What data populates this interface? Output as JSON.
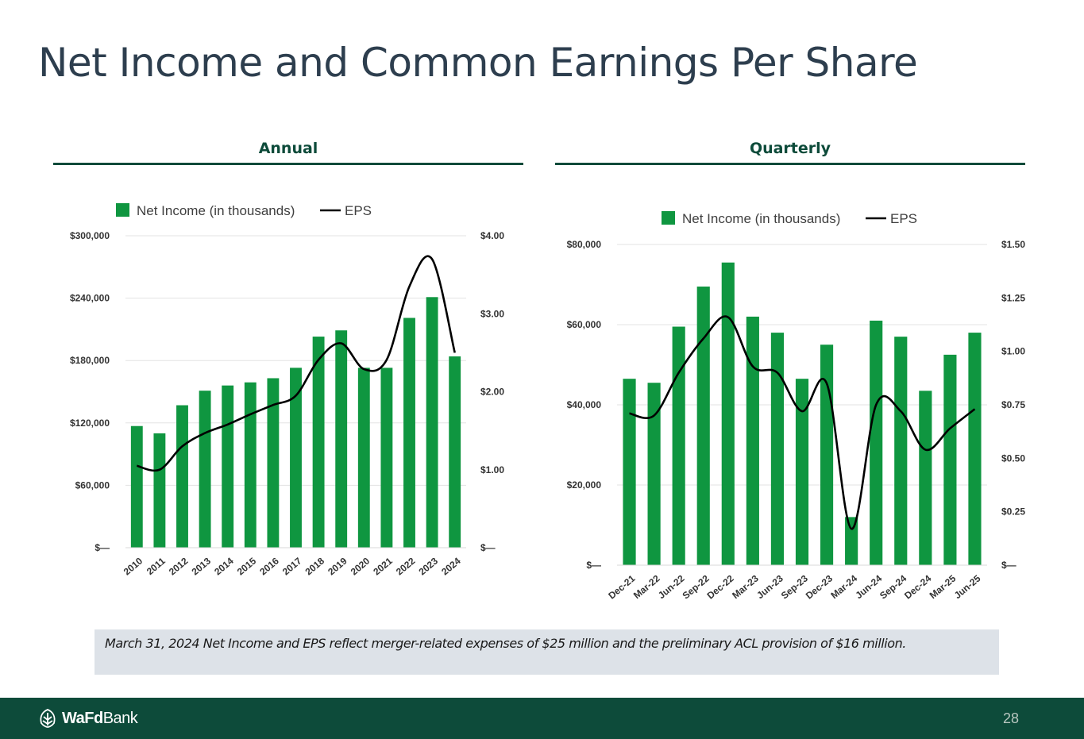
{
  "title": "Net Income and Common Earnings Per Share",
  "footnote": "March 31, 2024 Net Income and EPS reflect merger-related expenses of $25 million and the preliminary ACL provision of $16 million.",
  "footer": {
    "logo_bold": "WaFd",
    "logo_regular": "Bank",
    "page_number": "28"
  },
  "colors": {
    "bar": "#0f9640",
    "line": "#000000",
    "dark_green": "#0d4b3a",
    "grid": "#e3e3e3"
  },
  "chart_data": [
    {
      "type": "bar",
      "title": "Annual",
      "legend": {
        "bar": "Net Income (in thousands)",
        "line": "EPS",
        "position": "top"
      },
      "categories": [
        "2010",
        "2011",
        "2012",
        "2013",
        "2014",
        "2015",
        "2016",
        "2017",
        "2018",
        "2019",
        "2020",
        "2021",
        "2022",
        "2023",
        "2024"
      ],
      "series": [
        {
          "name": "Net Income (in thousands)",
          "type": "bar",
          "axis": "left",
          "values": [
            117000,
            110000,
            137000,
            151000,
            156000,
            159000,
            163000,
            173000,
            203000,
            209000,
            173000,
            173000,
            221000,
            241000,
            184000
          ]
        },
        {
          "name": "EPS",
          "type": "line",
          "axis": "right",
          "values": [
            1.05,
            1.0,
            1.3,
            1.47,
            1.58,
            1.71,
            1.83,
            1.95,
            2.41,
            2.62,
            2.29,
            2.41,
            3.35,
            3.7,
            2.5
          ]
        }
      ],
      "y_left": {
        "min": 0,
        "max": 300000,
        "ticks": [
          "$—",
          "$60,000",
          "$120,000",
          "$180,000",
          "$240,000",
          "$300,000"
        ]
      },
      "y_right": {
        "min": 0,
        "max": 4,
        "ticks": [
          "$—",
          "$1.00",
          "$2.00",
          "$3.00",
          "$4.00"
        ]
      },
      "grid": true
    },
    {
      "type": "bar",
      "title": "Quarterly",
      "legend": {
        "bar": "Net Income (in thousands)",
        "line": "EPS",
        "position": "top"
      },
      "categories": [
        "Dec-21",
        "Mar-22",
        "Jun-22",
        "Sep-22",
        "Dec-22",
        "Mar-23",
        "Jun-23",
        "Sep-23",
        "Dec-23",
        "Mar-24",
        "Jun-24",
        "Sep-24",
        "Dec-24",
        "Mar-25",
        "Jun-25"
      ],
      "series": [
        {
          "name": "Net Income (in thousands)",
          "type": "bar",
          "axis": "left",
          "values": [
            46500,
            45500,
            59500,
            69500,
            75500,
            62000,
            58000,
            46500,
            55000,
            12000,
            61000,
            57000,
            43500,
            52500,
            58000
          ]
        },
        {
          "name": "EPS",
          "type": "line",
          "axis": "right",
          "values": [
            0.71,
            0.7,
            0.9,
            1.06,
            1.16,
            0.93,
            0.9,
            0.72,
            0.85,
            0.17,
            0.75,
            0.72,
            0.54,
            0.64,
            0.73
          ]
        }
      ],
      "y_left": {
        "min": 0,
        "max": 80000,
        "ticks": [
          "$—",
          "$20,000",
          "$40,000",
          "$60,000",
          "$80,000"
        ]
      },
      "y_right": {
        "min": 0,
        "max": 1.5,
        "ticks": [
          "$—",
          "$0.25",
          "$0.50",
          "$0.75",
          "$1.00",
          "$1.25",
          "$1.50"
        ]
      },
      "grid": true
    }
  ]
}
